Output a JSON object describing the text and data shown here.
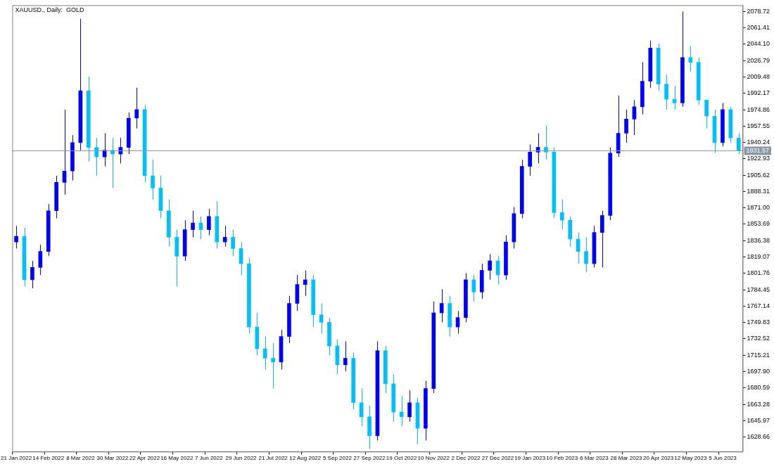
{
  "chart_data": {
    "type": "candlestick",
    "title": "XAUUSD., Daily:  GOLD",
    "legend": false,
    "categories": [
      "21 Jan 2022",
      null,
      null,
      null,
      "14 Feb 2022",
      null,
      null,
      null,
      "8 Mar 2022",
      null,
      null,
      null,
      "30 Mar 2022",
      null,
      null,
      null,
      "22 Apr 2022",
      null,
      null,
      null,
      "16 May 2022",
      null,
      null,
      null,
      "7 Jun 2022",
      null,
      null,
      null,
      "29 Jun 2022",
      null,
      null,
      null,
      "21 Jul 2022",
      null,
      null,
      null,
      "12 Aug 2022",
      null,
      null,
      null,
      "5 Sep 2022",
      null,
      null,
      null,
      "27 Sep 2022",
      null,
      null,
      null,
      "19 Oct 2022",
      null,
      null,
      null,
      "10 Nov 2022",
      null,
      null,
      null,
      "2 Dec 2022",
      null,
      null,
      null,
      "27 Dec 2022",
      null,
      null,
      null,
      "19 Jan 2023",
      null,
      null,
      null,
      "10 Feb 2023",
      null,
      null,
      null,
      "6 Mar 2023",
      null,
      null,
      null,
      "28 Mar 2023",
      null,
      null,
      null,
      "20 Apr 2023",
      null,
      null,
      null,
      "12 May 2023",
      null,
      null,
      null,
      "5 Jun 2023",
      null,
      null
    ],
    "ohlc": [
      [
        1835,
        1852,
        1828,
        1841
      ],
      [
        1841,
        1850,
        1788,
        1795
      ],
      [
        1795,
        1815,
        1786,
        1808
      ],
      [
        1808,
        1832,
        1800,
        1825
      ],
      [
        1825,
        1875,
        1820,
        1868
      ],
      [
        1868,
        1905,
        1860,
        1898
      ],
      [
        1898,
        1975,
        1885,
        1910
      ],
      [
        1910,
        1948,
        1900,
        1940
      ],
      [
        1940,
        2071,
        1932,
        1995
      ],
      [
        1995,
        2010,
        1920,
        1935
      ],
      [
        1935,
        1945,
        1905,
        1925
      ],
      [
        1925,
        1950,
        1915,
        1932
      ],
      [
        1932,
        1945,
        1892,
        1928
      ],
      [
        1928,
        1945,
        1918,
        1935
      ],
      [
        1935,
        1972,
        1928,
        1966
      ],
      [
        1966,
        1998,
        1955,
        1975
      ],
      [
        1975,
        1980,
        1898,
        1905
      ],
      [
        1905,
        1922,
        1880,
        1892
      ],
      [
        1892,
        1905,
        1860,
        1868
      ],
      [
        1868,
        1880,
        1830,
        1840
      ],
      [
        1840,
        1848,
        1788,
        1820
      ],
      [
        1820,
        1858,
        1815,
        1848
      ],
      [
        1848,
        1868,
        1840,
        1855
      ],
      [
        1855,
        1862,
        1838,
        1848
      ],
      [
        1848,
        1870,
        1842,
        1862
      ],
      [
        1862,
        1878,
        1828,
        1835
      ],
      [
        1835,
        1852,
        1830,
        1840
      ],
      [
        1840,
        1848,
        1820,
        1828
      ],
      [
        1828,
        1835,
        1800,
        1812
      ],
      [
        1812,
        1818,
        1738,
        1745
      ],
      [
        1745,
        1760,
        1715,
        1722
      ],
      [
        1722,
        1735,
        1700,
        1712
      ],
      [
        1712,
        1728,
        1680,
        1708
      ],
      [
        1708,
        1742,
        1700,
        1735
      ],
      [
        1735,
        1778,
        1728,
        1770
      ],
      [
        1770,
        1800,
        1762,
        1790
      ],
      [
        1790,
        1805,
        1778,
        1795
      ],
      [
        1795,
        1800,
        1745,
        1758
      ],
      [
        1758,
        1770,
        1738,
        1750
      ],
      [
        1750,
        1755,
        1715,
        1725
      ],
      [
        1725,
        1732,
        1695,
        1705
      ],
      [
        1705,
        1730,
        1698,
        1712
      ],
      [
        1712,
        1718,
        1658,
        1665
      ],
      [
        1665,
        1680,
        1640,
        1650
      ],
      [
        1650,
        1662,
        1616,
        1630
      ],
      [
        1630,
        1730,
        1625,
        1720
      ],
      [
        1720,
        1725,
        1675,
        1685
      ],
      [
        1685,
        1695,
        1645,
        1655
      ],
      [
        1655,
        1672,
        1640,
        1650
      ],
      [
        1650,
        1678,
        1645,
        1665
      ],
      [
        1665,
        1670,
        1621,
        1638
      ],
      [
        1638,
        1688,
        1625,
        1680
      ],
      [
        1680,
        1772,
        1675,
        1760
      ],
      [
        1760,
        1785,
        1750,
        1770
      ],
      [
        1770,
        1778,
        1735,
        1745
      ],
      [
        1745,
        1762,
        1738,
        1755
      ],
      [
        1755,
        1802,
        1750,
        1795
      ],
      [
        1795,
        1800,
        1772,
        1782
      ],
      [
        1782,
        1812,
        1775,
        1805
      ],
      [
        1805,
        1822,
        1795,
        1815
      ],
      [
        1815,
        1820,
        1790,
        1800
      ],
      [
        1800,
        1842,
        1795,
        1835
      ],
      [
        1835,
        1872,
        1828,
        1865
      ],
      [
        1865,
        1922,
        1860,
        1915
      ],
      [
        1915,
        1938,
        1905,
        1930
      ],
      [
        1930,
        1950,
        1918,
        1935
      ],
      [
        1935,
        1958,
        1922,
        1930
      ],
      [
        1930,
        1935,
        1860,
        1866
      ],
      [
        1866,
        1880,
        1848,
        1858
      ],
      [
        1858,
        1862,
        1830,
        1838
      ],
      [
        1838,
        1845,
        1812,
        1825
      ],
      [
        1825,
        1840,
        1803,
        1812
      ],
      [
        1812,
        1852,
        1808,
        1845
      ],
      [
        1845,
        1868,
        1808,
        1863
      ],
      [
        1863,
        1935,
        1858,
        1929
      ],
      [
        1929,
        1990,
        1925,
        1950
      ],
      [
        1950,
        1975,
        1940,
        1965
      ],
      [
        1965,
        1985,
        1948,
        1978
      ],
      [
        1978,
        2025,
        1970,
        2005
      ],
      [
        2005,
        2048,
        1998,
        2040
      ],
      [
        2040,
        2045,
        1995,
        2002
      ],
      [
        2002,
        2012,
        1975,
        1986
      ],
      [
        1986,
        2000,
        1975,
        1982
      ],
      [
        1982,
        2078.7,
        1978,
        2030
      ],
      [
        2030,
        2042,
        2015,
        2025
      ],
      [
        2025,
        2030,
        1980,
        1985
      ],
      [
        1985,
        1985,
        1955,
        1968
      ],
      [
        1968,
        1975,
        1929,
        1940
      ],
      [
        1940,
        1982,
        1936,
        1975
      ],
      [
        1975,
        1978,
        1940,
        1945
      ],
      [
        1945,
        1950,
        1928,
        1931.57
      ]
    ],
    "colors": [
      "#0000ff",
      "#00bfff",
      "#0000ff",
      "#0000ff",
      "#0000ff",
      "#0000ff",
      "#0000ff",
      "#0000ff",
      "#0000ff",
      "#00bfff",
      "#00bfff",
      "#0000ff",
      "#00bfff",
      "#0000ff",
      "#0000ff",
      "#0000ff",
      "#00bfff",
      "#00bfff",
      "#00bfff",
      "#00bfff",
      "#00bfff",
      "#0000ff",
      "#0000ff",
      "#00bfff",
      "#0000ff",
      "#00bfff",
      "#0000ff",
      "#00bfff",
      "#00bfff",
      "#00bfff",
      "#00bfff",
      "#00bfff",
      "#00bfff",
      "#0000ff",
      "#0000ff",
      "#0000ff",
      "#0000ff",
      "#00bfff",
      "#00bfff",
      "#00bfff",
      "#00bfff",
      "#0000ff",
      "#00bfff",
      "#00bfff",
      "#00bfff",
      "#0000ff",
      "#00bfff",
      "#00bfff",
      "#00bfff",
      "#0000ff",
      "#00bfff",
      "#0000ff",
      "#0000ff",
      "#0000ff",
      "#00bfff",
      "#0000ff",
      "#0000ff",
      "#00bfff",
      "#0000ff",
      "#0000ff",
      "#00bfff",
      "#0000ff",
      "#0000ff",
      "#0000ff",
      "#0000ff",
      "#0000ff",
      "#00bfff",
      "#00bfff",
      "#00bfff",
      "#00bfff",
      "#00bfff",
      "#00bfff",
      "#0000ff",
      "#0000ff",
      "#0000ff",
      "#0000ff",
      "#0000ff",
      "#0000ff",
      "#0000ff",
      "#0000ff",
      "#00bfff",
      "#00bfff",
      "#00bfff",
      "#0000ff",
      "#00bfff",
      "#00bfff",
      "#00bfff",
      "#00bfff",
      "#0000ff",
      "#00bfff",
      "#00bfff"
    ],
    "ylim": [
      1613.2,
      2085.4
    ],
    "yticks": [
      1628.66,
      1645.97,
      1663.28,
      1680.59,
      {
        "value": 1697.9,
        "label": "1697.90"
      },
      1715.21,
      1732.52,
      1749.83,
      1767.14,
      1784.45,
      1801.76,
      1819.07,
      1836.38,
      1853.69,
      {
        "value": 1871,
        "label": "1871.00"
      },
      1888.31,
      1905.62,
      1922.93,
      1940.24,
      1957.55,
      1974.86,
      1992.17,
      2009.48,
      2026.79,
      {
        "value": 2044.1,
        "label": "2044.10"
      },
      2061.41,
      2078.72
    ],
    "ref_lines": [
      {
        "axis": "y",
        "value": 1931.57,
        "label": "1931.57",
        "color": "#8899aa"
      }
    ]
  }
}
